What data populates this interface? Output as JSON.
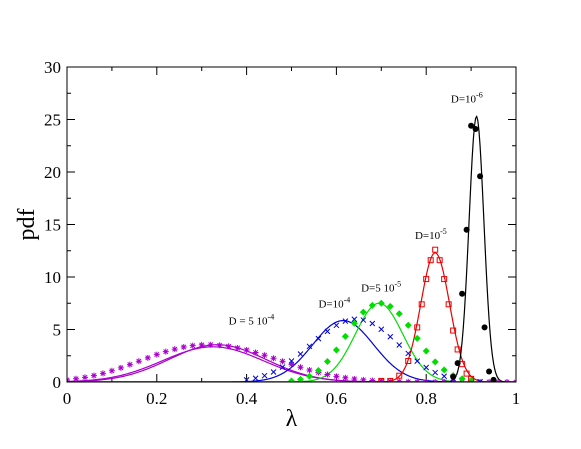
{
  "chart_data": {
    "type": "line",
    "title": "",
    "xlabel": "λ",
    "ylabel": "pdf",
    "xlim": [
      0,
      1
    ],
    "ylim": [
      0,
      30
    ],
    "x_ticks": [
      0,
      0.2,
      0.4,
      0.6,
      0.8,
      1
    ],
    "x_tick_labels": [
      "0",
      "0.2",
      "0.4",
      "0.6",
      "0.8",
      "1"
    ],
    "y_ticks": [
      0,
      5,
      10,
      15,
      20,
      25,
      30
    ],
    "y_tick_labels": [
      "0",
      "5",
      "10",
      "15",
      "20",
      "25",
      "30"
    ],
    "grid": false,
    "legend": "none",
    "series": [
      {
        "annotation": {
          "prefix": "D = 5 10",
          "exp": "-4",
          "x": 0.36,
          "y": 5.5
        },
        "color": "#aa00cc",
        "marker": "star",
        "curves": [
          {
            "peak": 0.335,
            "sigma": 0.108,
            "height": 3.55
          },
          {
            "peak": 0.325,
            "sigma": 0.112,
            "height": 3.35
          }
        ],
        "points": [
          [
            0.0,
            0.2
          ],
          [
            0.02,
            0.31
          ],
          [
            0.04,
            0.44
          ],
          [
            0.06,
            0.61
          ],
          [
            0.08,
            0.82
          ],
          [
            0.1,
            1.07
          ],
          [
            0.12,
            1.35
          ],
          [
            0.14,
            1.66
          ],
          [
            0.16,
            1.98
          ],
          [
            0.18,
            2.3
          ],
          [
            0.2,
            2.61
          ],
          [
            0.22,
            2.89
          ],
          [
            0.24,
            3.13
          ],
          [
            0.26,
            3.33
          ],
          [
            0.28,
            3.46
          ],
          [
            0.3,
            3.53
          ],
          [
            0.32,
            3.55
          ],
          [
            0.34,
            3.5
          ],
          [
            0.36,
            3.4
          ],
          [
            0.38,
            3.24
          ],
          [
            0.4,
            3.05
          ],
          [
            0.42,
            2.81
          ],
          [
            0.44,
            2.55
          ],
          [
            0.46,
            2.26
          ],
          [
            0.48,
            1.97
          ],
          [
            0.5,
            1.68
          ],
          [
            0.52,
            1.4
          ],
          [
            0.54,
            1.14
          ],
          [
            0.56,
            0.91
          ],
          [
            0.58,
            0.71
          ],
          [
            0.6,
            0.54
          ],
          [
            0.62,
            0.4
          ],
          [
            0.64,
            0.29
          ],
          [
            0.66,
            0.2
          ],
          [
            0.68,
            0.14
          ],
          [
            0.7,
            0.09
          ],
          [
            0.72,
            0.06
          ],
          [
            0.74,
            0.04
          ],
          [
            0.76,
            0.02
          ],
          [
            0.78,
            0.01
          ],
          [
            0.8,
            0.01
          ],
          [
            0.82,
            0.0
          ],
          [
            0.84,
            0.0
          ],
          [
            0.86,
            0.0
          ],
          [
            0.88,
            0.0
          ],
          [
            0.9,
            0.0
          ],
          [
            0.92,
            0.0
          ],
          [
            0.94,
            0.0
          ],
          [
            0.96,
            0.0
          ],
          [
            0.98,
            0.0
          ],
          [
            1.0,
            0.0
          ]
        ]
      },
      {
        "annotation": {
          "prefix": "D=10",
          "exp": "-4",
          "x": 0.56,
          "y": 7.1
        },
        "color": "#0000dd",
        "marker": "cross",
        "curves": [
          {
            "peak": 0.615,
            "sigma": 0.068,
            "height": 5.85
          }
        ],
        "points": [
          [
            0.4,
            0.2
          ],
          [
            0.42,
            0.36
          ],
          [
            0.44,
            0.6
          ],
          [
            0.46,
            0.95
          ],
          [
            0.48,
            1.42
          ],
          [
            0.5,
            2.0
          ],
          [
            0.52,
            2.67
          ],
          [
            0.54,
            3.4
          ],
          [
            0.56,
            4.13
          ],
          [
            0.58,
            4.82
          ],
          [
            0.6,
            5.4
          ],
          [
            0.62,
            5.8
          ],
          [
            0.64,
            5.98
          ],
          [
            0.66,
            5.9
          ],
          [
            0.68,
            5.57
          ],
          [
            0.7,
            5.02
          ],
          [
            0.72,
            4.31
          ],
          [
            0.74,
            3.52
          ],
          [
            0.76,
            2.72
          ],
          [
            0.78,
            1.99
          ],
          [
            0.8,
            1.38
          ],
          [
            0.82,
            0.9
          ],
          [
            0.84,
            0.55
          ],
          [
            0.86,
            0.32
          ],
          [
            0.88,
            0.17
          ],
          [
            0.9,
            0.09
          ],
          [
            0.92,
            0.04
          ]
        ]
      },
      {
        "annotation": {
          "prefix": "D=5 10",
          "exp": "-5",
          "x": 0.655,
          "y": 8.6
        },
        "color": "#00dd00",
        "marker": "diamond",
        "curves": [
          {
            "peak": 0.695,
            "sigma": 0.053,
            "height": 7.5
          }
        ],
        "points": [
          [
            0.5,
            0.1
          ],
          [
            0.52,
            0.25
          ],
          [
            0.54,
            0.55
          ],
          [
            0.56,
            1.1
          ],
          [
            0.58,
            1.95
          ],
          [
            0.6,
            3.05
          ],
          [
            0.62,
            4.35
          ],
          [
            0.64,
            5.6
          ],
          [
            0.66,
            6.65
          ],
          [
            0.68,
            7.3
          ],
          [
            0.7,
            7.5
          ],
          [
            0.72,
            7.2
          ],
          [
            0.74,
            6.5
          ],
          [
            0.76,
            5.4
          ],
          [
            0.78,
            4.15
          ],
          [
            0.8,
            2.95
          ],
          [
            0.82,
            1.92
          ],
          [
            0.84,
            1.15
          ],
          [
            0.86,
            0.62
          ],
          [
            0.88,
            0.31
          ],
          [
            0.9,
            0.14
          ]
        ]
      },
      {
        "annotation": {
          "prefix": "D=10",
          "exp": "-5",
          "x": 0.775,
          "y": 13.6
        },
        "color": "#ee0000",
        "marker": "square",
        "curves": [
          {
            "peak": 0.82,
            "sigma": 0.032,
            "height": 12.3
          }
        ],
        "points": [
          [
            0.7,
            0.1
          ],
          [
            0.72,
            0.1
          ],
          [
            0.74,
            0.6
          ],
          [
            0.76,
            2.0
          ],
          [
            0.78,
            5.2
          ],
          [
            0.79,
            7.4
          ],
          [
            0.8,
            9.8
          ],
          [
            0.81,
            11.6
          ],
          [
            0.82,
            12.6
          ],
          [
            0.83,
            11.6
          ],
          [
            0.84,
            9.8
          ],
          [
            0.85,
            7.4
          ],
          [
            0.86,
            4.9
          ],
          [
            0.87,
            3.1
          ],
          [
            0.88,
            1.7
          ],
          [
            0.89,
            0.8
          ],
          [
            0.9,
            0.3
          ]
        ]
      },
      {
        "annotation": {
          "prefix": "D=10",
          "exp": "-6",
          "x": 0.855,
          "y": 26.6
        },
        "color": "#000000",
        "marker": "circle",
        "curves": [
          {
            "peak": 0.912,
            "sigma": 0.0165,
            "height": 25.3
          }
        ],
        "points": [
          [
            0.86,
            0.5
          ],
          [
            0.87,
            1.8
          ],
          [
            0.88,
            8.4
          ],
          [
            0.89,
            14.5
          ],
          [
            0.9,
            24.4
          ],
          [
            0.91,
            24.1
          ],
          [
            0.92,
            19.6
          ],
          [
            0.93,
            5.2
          ],
          [
            0.94,
            1.0
          ],
          [
            0.95,
            0.2
          ]
        ]
      }
    ]
  }
}
